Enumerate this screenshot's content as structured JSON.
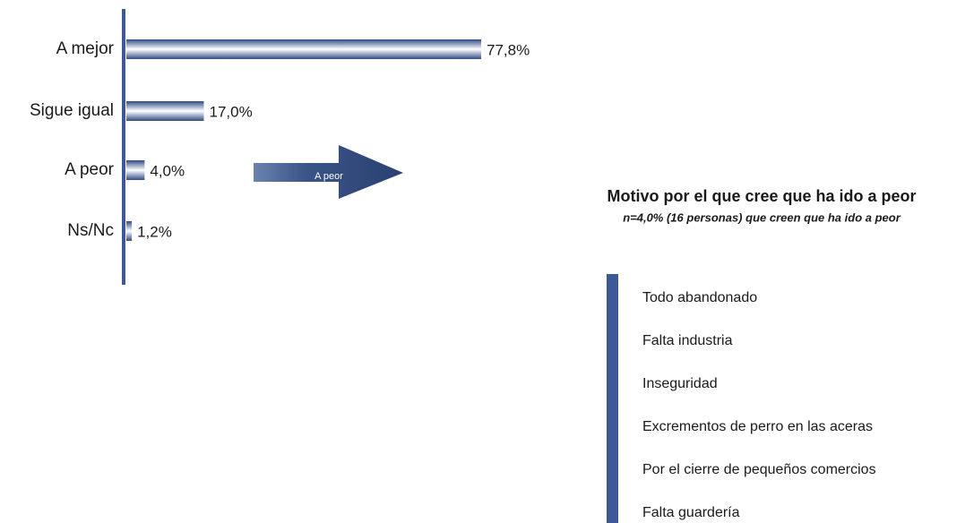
{
  "chart_data": [
    {
      "type": "bar",
      "orientation": "horizontal",
      "categories": [
        "A mejor",
        "Sigue igual",
        "A peor",
        "Ns/Nc"
      ],
      "values": [
        77.8,
        17.0,
        4.0,
        1.2
      ],
      "value_labels": [
        "77,8%",
        "17,0%",
        "4,0%",
        "1,2%"
      ],
      "color": "#3d5a96",
      "annotation": "A peor"
    },
    {
      "type": "bar",
      "orientation": "horizontal",
      "title": "Motivo por el que cree que ha ido a peor",
      "subtitle": "n=4,0% (16 personas) que creen que ha ido a peor",
      "categories": [
        "Todo abandonado",
        "Falta industria",
        "Inseguridad",
        "Excrementos de perro en las aceras",
        "Por el cierre de pequeños comercios",
        "Falta guardería"
      ],
      "color": "#3d5a96"
    }
  ]
}
